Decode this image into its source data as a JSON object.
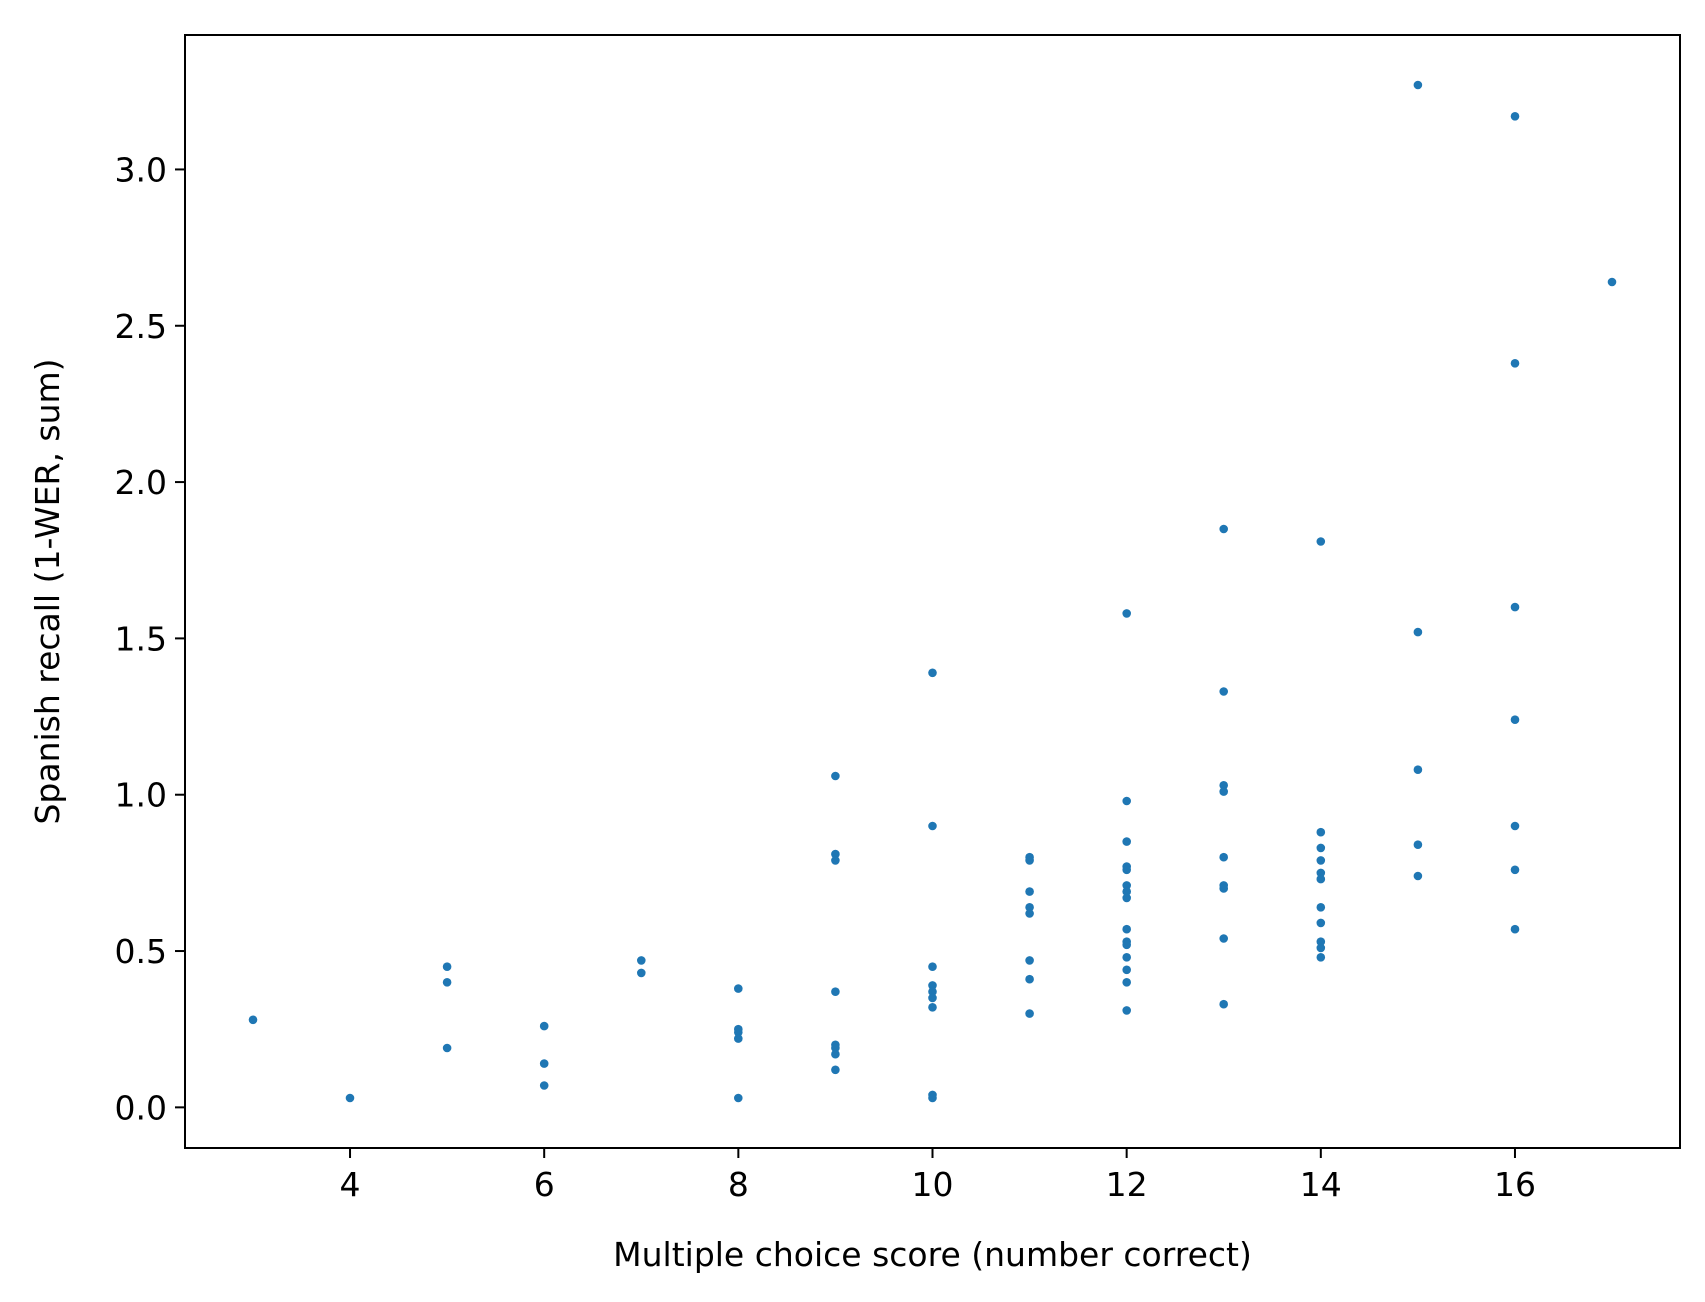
{
  "chart_data": {
    "type": "scatter",
    "title": "",
    "xlabel": "Multiple choice score (number correct)",
    "ylabel": "Spanish recall (1-WER, sum)",
    "xlim": [
      2.3,
      17.7
    ],
    "ylim": [
      -0.13,
      3.43
    ],
    "xticks": [
      4,
      6,
      8,
      10,
      12,
      14,
      16
    ],
    "xtick_labels": [
      "4",
      "6",
      "8",
      "10",
      "12",
      "14",
      "16"
    ],
    "yticks": [
      0.0,
      0.5,
      1.0,
      1.5,
      2.0,
      2.5,
      3.0
    ],
    "ytick_labels": [
      "0.0",
      "0.5",
      "1.0",
      "1.5",
      "2.0",
      "2.5",
      "3.0"
    ],
    "grid": false,
    "legend": "none",
    "marker_color": "#1f77b4",
    "series": [
      {
        "points": [
          [
            3,
            0.28
          ],
          [
            4,
            0.03
          ],
          [
            5,
            0.45
          ],
          [
            5,
            0.4
          ],
          [
            5,
            0.19
          ],
          [
            6,
            0.26
          ],
          [
            6,
            0.14
          ],
          [
            6,
            0.07
          ],
          [
            7,
            0.47
          ],
          [
            7,
            0.43
          ],
          [
            8,
            0.38
          ],
          [
            8,
            0.25
          ],
          [
            8,
            0.24
          ],
          [
            8,
            0.22
          ],
          [
            8,
            0.03
          ],
          [
            9,
            1.06
          ],
          [
            9,
            0.81
          ],
          [
            9,
            0.79
          ],
          [
            9,
            0.37
          ],
          [
            9,
            0.2
          ],
          [
            9,
            0.19
          ],
          [
            9,
            0.17
          ],
          [
            9,
            0.12
          ],
          [
            10,
            1.39
          ],
          [
            10,
            0.9
          ],
          [
            10,
            0.45
          ],
          [
            10,
            0.39
          ],
          [
            10,
            0.37
          ],
          [
            10,
            0.35
          ],
          [
            10,
            0.32
          ],
          [
            10,
            0.04
          ],
          [
            10,
            0.03
          ],
          [
            11,
            0.8
          ],
          [
            11,
            0.79
          ],
          [
            11,
            0.69
          ],
          [
            11,
            0.64
          ],
          [
            11,
            0.62
          ],
          [
            11,
            0.47
          ],
          [
            11,
            0.41
          ],
          [
            11,
            0.3
          ],
          [
            12,
            1.58
          ],
          [
            12,
            0.98
          ],
          [
            12,
            0.85
          ],
          [
            12,
            0.77
          ],
          [
            12,
            0.76
          ],
          [
            12,
            0.71
          ],
          [
            12,
            0.69
          ],
          [
            12,
            0.67
          ],
          [
            12,
            0.57
          ],
          [
            12,
            0.53
          ],
          [
            12,
            0.52
          ],
          [
            12,
            0.48
          ],
          [
            12,
            0.44
          ],
          [
            12,
            0.4
          ],
          [
            12,
            0.31
          ],
          [
            13,
            1.85
          ],
          [
            13,
            1.33
          ],
          [
            13,
            1.03
          ],
          [
            13,
            1.01
          ],
          [
            13,
            0.8
          ],
          [
            13,
            0.71
          ],
          [
            13,
            0.7
          ],
          [
            13,
            0.54
          ],
          [
            13,
            0.33
          ],
          [
            14,
            1.81
          ],
          [
            14,
            0.88
          ],
          [
            14,
            0.83
          ],
          [
            14,
            0.79
          ],
          [
            14,
            0.75
          ],
          [
            14,
            0.73
          ],
          [
            14,
            0.64
          ],
          [
            14,
            0.59
          ],
          [
            14,
            0.53
          ],
          [
            14,
            0.51
          ],
          [
            14,
            0.48
          ],
          [
            15,
            3.27
          ],
          [
            15,
            1.52
          ],
          [
            15,
            1.08
          ],
          [
            15,
            0.84
          ],
          [
            15,
            0.74
          ],
          [
            16,
            3.17
          ],
          [
            16,
            2.38
          ],
          [
            16,
            1.6
          ],
          [
            16,
            1.24
          ],
          [
            16,
            0.9
          ],
          [
            16,
            0.76
          ],
          [
            16,
            0.57
          ],
          [
            17,
            2.64
          ]
        ]
      }
    ]
  }
}
